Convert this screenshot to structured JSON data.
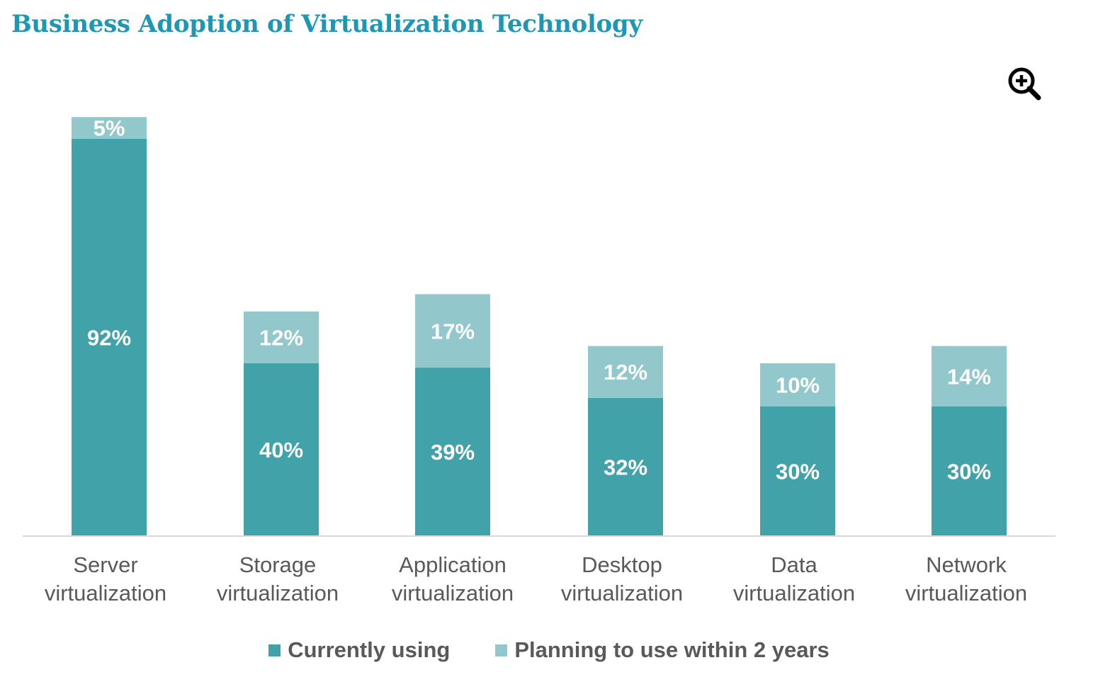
{
  "title": "Business Adoption of Virtualization Technology",
  "zoom_icon": "zoom-in-icon",
  "colors": {
    "title": "#1d97b3",
    "current": "#42a2a9",
    "planning": "#92c8cc",
    "axis": "#d9d9d9",
    "text": "#595959"
  },
  "chart_data": {
    "type": "bar",
    "stacked": true,
    "title": "Business Adoption of Virtualization Technology",
    "xlabel": "",
    "ylabel": "",
    "categories": [
      [
        "Server",
        "virtualization"
      ],
      [
        "Storage",
        "virtualization"
      ],
      [
        "Application",
        "virtualization"
      ],
      [
        "Desktop",
        "virtualization"
      ],
      [
        "Data",
        "virtualization"
      ],
      [
        "Network",
        "virtualization"
      ]
    ],
    "series": [
      {
        "name": "Currently using",
        "values": [
          92,
          40,
          39,
          32,
          30,
          30
        ],
        "labels": [
          "92%",
          "40%",
          "39%",
          "32%",
          "30%",
          "30%"
        ]
      },
      {
        "name": "Planning to use within 2 years",
        "values": [
          5,
          12,
          17,
          12,
          10,
          14
        ],
        "labels": [
          "5%",
          "12%",
          "17%",
          "12%",
          "10%",
          "14%"
        ]
      }
    ],
    "legend": "bottom",
    "grid": false
  }
}
